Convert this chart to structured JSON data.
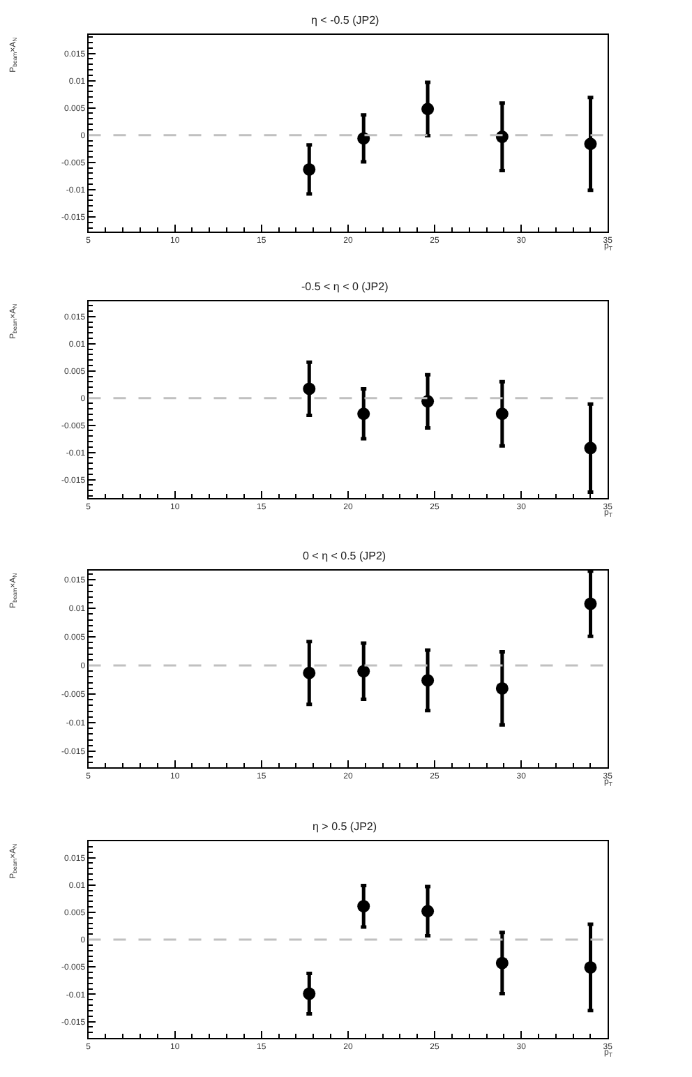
{
  "chart_data": [
    {
      "type": "scatter",
      "title": "η < -0.5 (JP2)",
      "xlabel": "p$_{T}$",
      "ylabel": "P$_{beam}$×A$_{N}$",
      "marker": "circle",
      "x": [
        17.76,
        20.9,
        24.6,
        28.9,
        34.0
      ],
      "series": [
        {
          "color": "#000000",
          "values": [
            -0.0063,
            -0.0006,
            0.0048,
            -0.0003,
            -0.0016
          ],
          "errors": [
            0.0045,
            0.0043,
            0.0049,
            0.0062,
            0.0085
          ]
        }
      ],
      "xlim": [
        5,
        35
      ],
      "xticks": [
        5,
        10,
        15,
        20,
        25,
        30,
        35
      ],
      "ylim": [
        -0.0177,
        0.0184
      ],
      "yticks": [
        -0.015,
        -0.01,
        -0.005,
        0,
        0.005,
        0.01,
        0.015
      ],
      "ref_lines": [
        {
          "axis": "y",
          "value": 0,
          "color": "#c0c0c0",
          "line_style": "dashed"
        }
      ]
    },
    {
      "type": "scatter",
      "title": "-0.5 < η < 0 (JP2)",
      "xlabel": "p$_{T}$",
      "ylabel": "P$_{beam}$×A$_{N}$",
      "marker": "circle",
      "x": [
        17.76,
        20.9,
        24.6,
        28.9,
        34.0
      ],
      "series": [
        {
          "color": "#000000",
          "values": [
            0.0017,
            -0.0029,
            -0.0006,
            -0.0029,
            -0.0092
          ],
          "errors": [
            0.0049,
            0.0046,
            0.0049,
            0.0059,
            0.0081
          ]
        }
      ],
      "xlim": [
        5,
        35
      ],
      "xticks": [
        5,
        10,
        15,
        20,
        25,
        30,
        35
      ],
      "ylim": [
        -0.0184,
        0.0178
      ],
      "yticks": [
        -0.015,
        -0.01,
        -0.005,
        0,
        0.005,
        0.01,
        0.015
      ],
      "ref_lines": [
        {
          "axis": "y",
          "value": 0,
          "color": "#c0c0c0",
          "line_style": "dashed"
        }
      ]
    },
    {
      "type": "scatter",
      "title": "0 < η < 0.5 (JP2)",
      "xlabel": "p$_{T}$",
      "ylabel": "P$_{beam}$×A$_{N}$",
      "marker": "circle",
      "x": [
        17.76,
        20.9,
        24.6,
        28.9,
        34.0
      ],
      "series": [
        {
          "color": "#000000",
          "values": [
            -0.0013,
            -0.001,
            -0.0026,
            -0.004,
            0.0108
          ],
          "errors": [
            0.0055,
            0.0049,
            0.0053,
            0.0064,
            0.0057
          ]
        }
      ],
      "xlim": [
        5,
        35
      ],
      "xticks": [
        5,
        10,
        15,
        20,
        25,
        30,
        35
      ],
      "ylim": [
        -0.0178,
        0.0166
      ],
      "yticks": [
        -0.015,
        -0.01,
        -0.005,
        0,
        0.005,
        0.01,
        0.015
      ],
      "ref_lines": [
        {
          "axis": "y",
          "value": 0,
          "color": "#c0c0c0",
          "line_style": "dashed"
        }
      ]
    },
    {
      "type": "scatter",
      "title": "η > 0.5 (JP2)",
      "xlabel": "p$_{T}$",
      "ylabel": "P$_{beam}$×A$_{N}$",
      "marker": "circle",
      "x": [
        17.76,
        20.9,
        24.6,
        28.9,
        34.0
      ],
      "series": [
        {
          "color": "#000000",
          "values": [
            -0.0099,
            0.0061,
            0.0052,
            -0.0043,
            -0.0051
          ],
          "errors": [
            0.0037,
            0.0038,
            0.0045,
            0.0056,
            0.0079
          ]
        }
      ],
      "xlim": [
        5,
        35
      ],
      "xticks": [
        5,
        10,
        15,
        20,
        25,
        30,
        35
      ],
      "ylim": [
        -0.018,
        0.018
      ],
      "yticks": [
        -0.015,
        -0.01,
        -0.005,
        0,
        0.005,
        0.01,
        0.015
      ],
      "ref_lines": [
        {
          "axis": "y",
          "value": 0,
          "color": "#c0c0c0",
          "line_style": "dashed"
        }
      ]
    }
  ]
}
